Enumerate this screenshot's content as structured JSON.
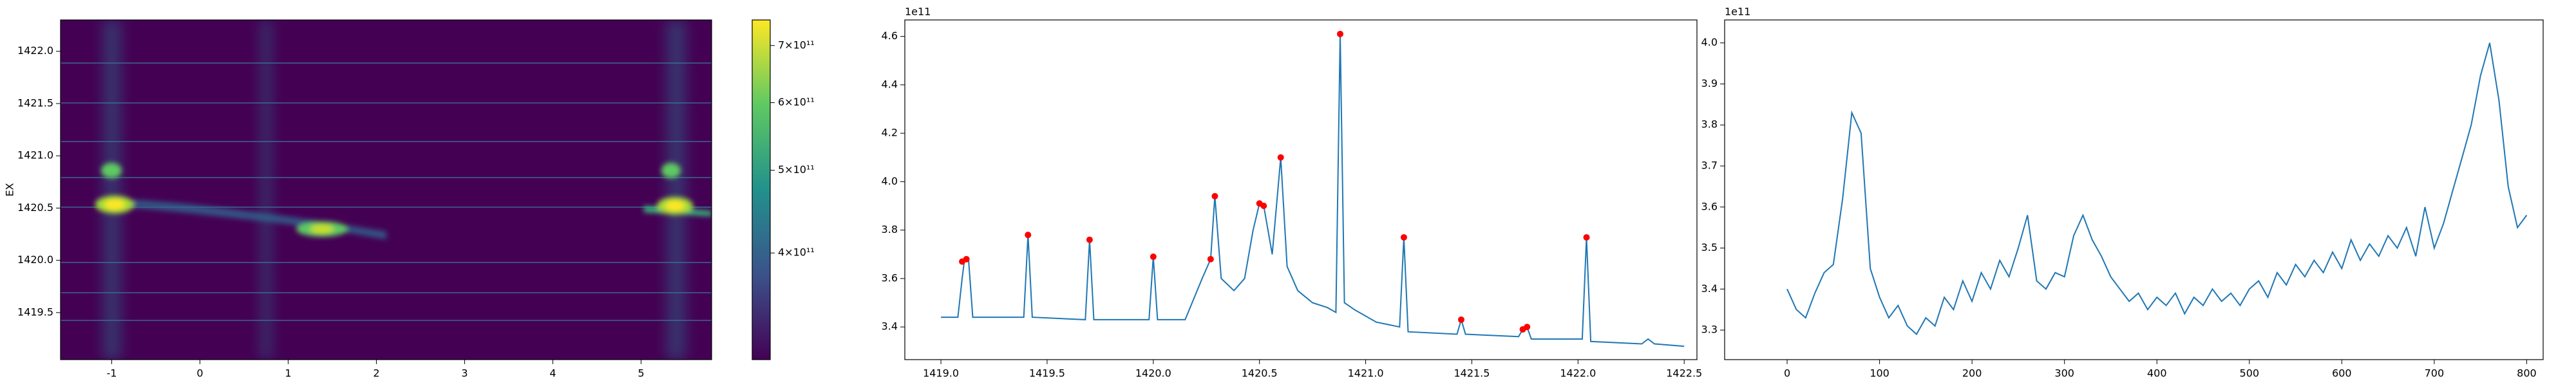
{
  "chart_data": [
    {
      "type": "heatmap",
      "ylabel": "EX",
      "xlim": [
        -1.58,
        5.8
      ],
      "xticks": [
        -1,
        0,
        1,
        2,
        3,
        4,
        5
      ],
      "ylim": [
        1419.05,
        1422.3
      ],
      "yticks": [
        1419.5,
        {
          "value": 1420,
          "label": "1420.0"
        },
        1420.5,
        {
          "value": 1421,
          "label": "1421.0"
        },
        1421.5,
        {
          "value": 1422,
          "label": "1422.0"
        }
      ],
      "colorbar": {
        "scale": "log",
        "lim": [
          300000000000,
          750000000000
        ],
        "ticks": [
          {
            "value": 400000000000,
            "label": "4×10¹¹"
          },
          {
            "value": 500000000000,
            "label": "5×10¹¹"
          },
          {
            "value": 600000000000,
            "label": "6×10¹¹"
          },
          {
            "value": 700000000000,
            "label": "7×10¹¹"
          }
        ]
      }
    },
    {
      "type": "line",
      "offset_label": "1e11",
      "xlim": [
        1418.83,
        1422.56
      ],
      "xticks": [
        {
          "value": 1419,
          "label": "1419.0"
        },
        1419.5,
        {
          "value": 1420,
          "label": "1420.0"
        },
        1420.5,
        {
          "value": 1421,
          "label": "1421.0"
        },
        1421.5,
        {
          "value": 1422,
          "label": "1422.0"
        },
        1422.5
      ],
      "ylim": [
        3.265,
        4.668
      ],
      "yticks": [
        3.4,
        3.6,
        3.8,
        {
          "value": 4,
          "label": "4.0"
        },
        4.2,
        4.4,
        4.6
      ],
      "series": [
        {
          "color": "#1f77b4",
          "x": [
            1419.0,
            1419.08,
            1419.1,
            1419.11,
            1419.13,
            1419.15,
            1419.39,
            1419.41,
            1419.43,
            1419.68,
            1419.7,
            1419.72,
            1419.98,
            1420.0,
            1420.02,
            1420.15,
            1420.23,
            1420.27,
            1420.29,
            1420.32,
            1420.38,
            1420.43,
            1420.47,
            1420.5,
            1420.52,
            1420.56,
            1420.6,
            1420.63,
            1420.68,
            1420.75,
            1420.82,
            1420.86,
            1420.88,
            1420.9,
            1420.95,
            1421.05,
            1421.16,
            1421.18,
            1421.2,
            1421.43,
            1421.45,
            1421.47,
            1421.72,
            1421.74,
            1421.76,
            1421.78,
            1422.02,
            1422.04,
            1422.06,
            1422.3,
            1422.33,
            1422.36,
            1422.5
          ],
          "values": [
            3.44,
            3.44,
            3.6,
            3.67,
            3.68,
            3.44,
            3.44,
            3.78,
            3.44,
            3.43,
            3.76,
            3.43,
            3.43,
            3.69,
            3.43,
            3.43,
            3.6,
            3.68,
            3.94,
            3.6,
            3.55,
            3.6,
            3.8,
            3.91,
            3.9,
            3.7,
            4.1,
            3.65,
            3.55,
            3.5,
            3.48,
            3.46,
            4.61,
            3.5,
            3.47,
            3.42,
            3.4,
            3.77,
            3.38,
            3.37,
            3.43,
            3.37,
            3.36,
            3.39,
            3.4,
            3.35,
            3.35,
            3.77,
            3.34,
            3.33,
            3.35,
            3.33,
            3.32
          ]
        }
      ],
      "points": {
        "color": "#ff0000",
        "x": [
          1419.1,
          1419.12,
          1419.41,
          1419.7,
          1420.0,
          1420.27,
          1420.29,
          1420.5,
          1420.52,
          1420.6,
          1420.88,
          1421.18,
          1421.45,
          1421.74,
          1421.76,
          1422.04
        ],
        "values": [
          3.67,
          3.68,
          3.78,
          3.76,
          3.69,
          3.68,
          3.94,
          3.91,
          3.9,
          4.1,
          4.61,
          3.77,
          3.43,
          3.39,
          3.4,
          3.77
        ]
      }
    },
    {
      "type": "line",
      "offset_label": "1e11",
      "xlim": [
        -67.6,
        817.8
      ],
      "xticks": [
        0,
        100,
        200,
        300,
        400,
        500,
        600,
        700,
        800
      ],
      "ylim": [
        3.228,
        4.056
      ],
      "yticks": [
        3.3,
        3.4,
        3.5,
        3.6,
        3.7,
        3.8,
        3.9,
        {
          "value": 4,
          "label": "4.0"
        }
      ],
      "series": [
        {
          "color": "#1f77b4",
          "x": [
            0,
            10,
            20,
            30,
            40,
            50,
            60,
            70,
            80,
            90,
            100,
            110,
            120,
            130,
            140,
            150,
            160,
            170,
            180,
            190,
            200,
            210,
            220,
            230,
            240,
            250,
            260,
            270,
            280,
            290,
            300,
            310,
            320,
            330,
            340,
            350,
            360,
            370,
            380,
            390,
            400,
            410,
            420,
            430,
            440,
            450,
            460,
            470,
            480,
            490,
            500,
            510,
            520,
            530,
            540,
            550,
            560,
            570,
            580,
            590,
            600,
            610,
            620,
            630,
            640,
            650,
            660,
            670,
            680,
            690,
            700,
            710,
            720,
            730,
            740,
            750,
            760,
            770,
            780,
            790,
            800
          ],
          "values": [
            3.4,
            3.35,
            3.33,
            3.39,
            3.44,
            3.46,
            3.62,
            3.83,
            3.78,
            3.45,
            3.38,
            3.33,
            3.36,
            3.31,
            3.29,
            3.33,
            3.31,
            3.38,
            3.35,
            3.42,
            3.37,
            3.44,
            3.4,
            3.47,
            3.43,
            3.5,
            3.58,
            3.42,
            3.4,
            3.44,
            3.43,
            3.53,
            3.58,
            3.52,
            3.48,
            3.43,
            3.4,
            3.37,
            3.39,
            3.35,
            3.38,
            3.36,
            3.39,
            3.34,
            3.38,
            3.36,
            3.4,
            3.37,
            3.39,
            3.36,
            3.4,
            3.42,
            3.38,
            3.44,
            3.41,
            3.46,
            3.43,
            3.47,
            3.44,
            3.49,
            3.45,
            3.52,
            3.47,
            3.51,
            3.48,
            3.53,
            3.5,
            3.55,
            3.48,
            3.6,
            3.5,
            3.56,
            3.64,
            3.72,
            3.8,
            3.92,
            4.0,
            3.86,
            3.65,
            3.55,
            3.58
          ]
        }
      ]
    }
  ]
}
